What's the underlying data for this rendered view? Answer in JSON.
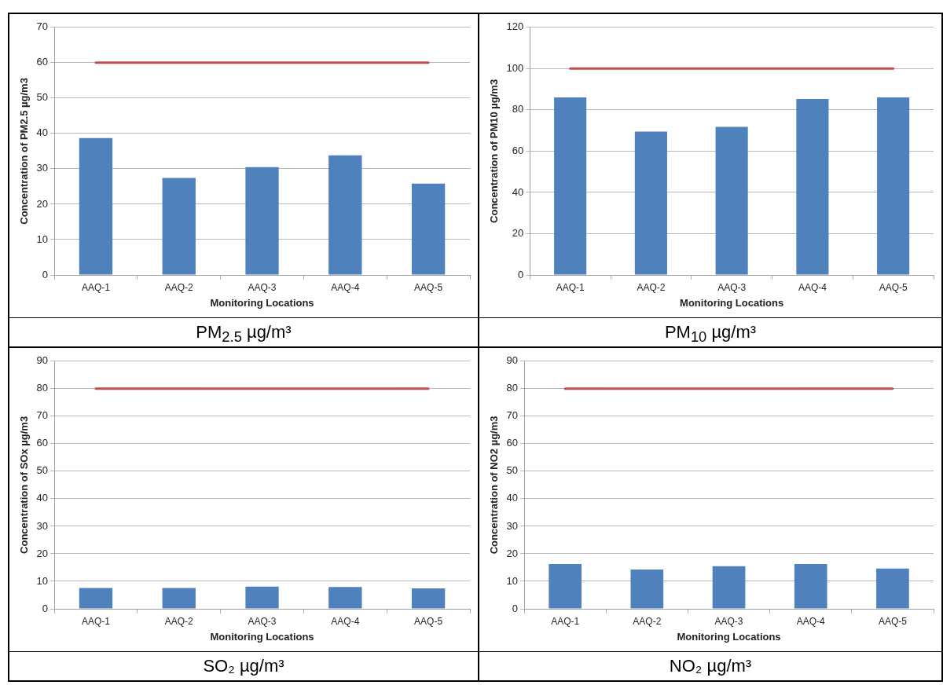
{
  "chart_data": [
    {
      "type": "bar",
      "title": "PM$_{2.5}$ µg/m³",
      "xlabel": "Monitoring Locations",
      "ylabel": "Concentration of PM2.5 µg/m3",
      "categories": [
        "AAQ-1",
        "AAQ-2",
        "AAQ-3",
        "AAQ-4",
        "AAQ-5"
      ],
      "series": [
        {
          "color": "#4f81bd",
          "values": [
            38.7,
            27.4,
            30.5,
            33.8,
            25.8
          ]
        },
        {
          "type": "line",
          "color": "#c0504d",
          "values": [
            60,
            60,
            60,
            60,
            60
          ]
        }
      ],
      "ylim": [
        0,
        70
      ],
      "yticks": [
        0,
        10,
        20,
        30,
        40,
        50,
        60,
        70
      ],
      "grid": "y",
      "legend": false,
      "marker": "none"
    },
    {
      "type": "bar",
      "title": "PM$_{10}$ µg/m³",
      "xlabel": "Monitoring Locations",
      "ylabel": "Concentration of PM10 µg/m3",
      "categories": [
        "AAQ-1",
        "AAQ-2",
        "AAQ-3",
        "AAQ-4",
        "AAQ-5"
      ],
      "series": [
        {
          "color": "#4f81bd",
          "values": [
            86,
            69.5,
            71.8,
            85.3,
            86
          ]
        },
        {
          "type": "line",
          "color": "#c0504d",
          "values": [
            100,
            100,
            100,
            100,
            100
          ]
        }
      ],
      "ylim": [
        0,
        120
      ],
      "yticks": [
        0,
        20,
        40,
        60,
        80,
        100,
        120
      ],
      "grid": "y",
      "legend": false,
      "marker": "none"
    },
    {
      "type": "bar",
      "title": "SO₂ µg/m³",
      "xlabel": "Monitoring Locations",
      "ylabel": "Concentration of SOx µg/m3",
      "categories": [
        "AAQ-1",
        "AAQ-2",
        "AAQ-3",
        "AAQ-4",
        "AAQ-5"
      ],
      "series": [
        {
          "color": "#4f81bd",
          "values": [
            7.6,
            7.6,
            8.1,
            7.9,
            7.4
          ]
        },
        {
          "type": "line",
          "color": "#c0504d",
          "values": [
            80,
            80,
            80,
            80,
            80
          ]
        }
      ],
      "ylim": [
        0,
        90
      ],
      "yticks": [
        0,
        10,
        20,
        30,
        40,
        50,
        60,
        70,
        80,
        90
      ],
      "grid": "y",
      "legend": false,
      "marker": "none"
    },
    {
      "type": "bar",
      "title": "NO₂ µg/m³",
      "xlabel": "Monitoring Locations",
      "ylabel": "Concentration of NO2 µg/m3",
      "categories": [
        "AAQ-1",
        "AAQ-2",
        "AAQ-3",
        "AAQ-4",
        "AAQ-5"
      ],
      "series": [
        {
          "color": "#4f81bd",
          "values": [
            16.3,
            14.3,
            15.5,
            16.3,
            14.6
          ]
        },
        {
          "type": "line",
          "color": "#c0504d",
          "values": [
            80,
            80,
            80,
            80,
            80
          ]
        }
      ],
      "ylim": [
        0,
        90
      ],
      "yticks": [
        0,
        10,
        20,
        30,
        40,
        50,
        60,
        70,
        80,
        90
      ],
      "grid": "y",
      "legend": false,
      "marker": "none"
    }
  ]
}
